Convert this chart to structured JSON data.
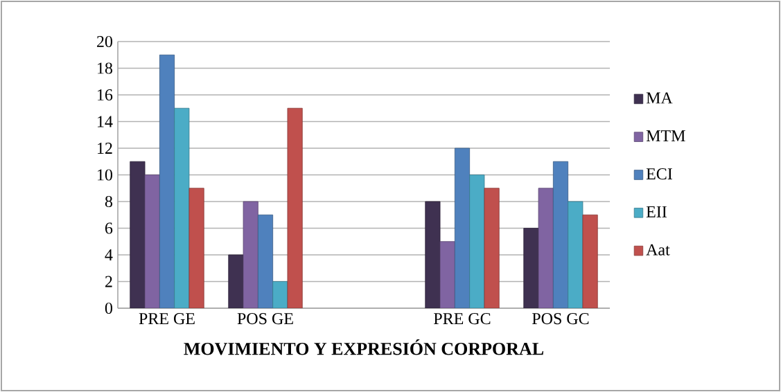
{
  "chart_data": {
    "type": "bar",
    "xlabel": "MOVIMIENTO Y EXPRESIÓN CORPORAL",
    "categories": [
      "PRE GE",
      "POS GE",
      null,
      "PRE GC",
      "POS GC"
    ],
    "series": [
      {
        "name": "MA",
        "color": "#3f3151",
        "values": [
          11,
          4,
          null,
          8,
          6
        ]
      },
      {
        "name": "MTM",
        "color": "#8064a2",
        "values": [
          10,
          8,
          null,
          5,
          9
        ]
      },
      {
        "name": "ECI",
        "color": "#4f81bd",
        "values": [
          19,
          7,
          null,
          12,
          11
        ]
      },
      {
        "name": "EII",
        "color": "#4bacc6",
        "values": [
          15,
          2,
          null,
          10,
          8
        ]
      },
      {
        "name": "Aat",
        "color": "#c0504d",
        "values": [
          9,
          15,
          null,
          9,
          7
        ]
      }
    ],
    "ylim": [
      0,
      20
    ],
    "yticks": [
      0,
      2,
      4,
      6,
      8,
      10,
      12,
      14,
      16,
      18,
      20
    ],
    "grid": "y",
    "legend": "right"
  }
}
